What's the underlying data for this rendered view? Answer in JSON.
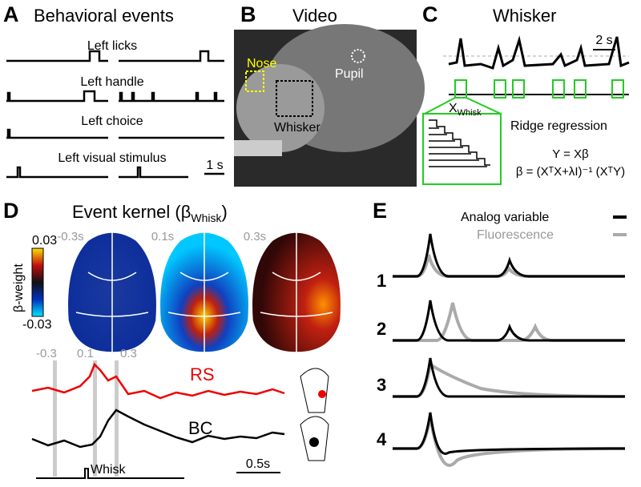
{
  "panel_a": {
    "letter": "A",
    "title": "Behavioral events",
    "rows": [
      "Left licks",
      "Left handle",
      "Left choice",
      "Left visual stimulus"
    ],
    "scale": "1 s"
  },
  "panel_b": {
    "letter": "B",
    "title": "Video",
    "nose": "Nose",
    "pupil": "Pupil",
    "whisker": "Whisker"
  },
  "panel_c": {
    "letter": "C",
    "title": "Whisker",
    "scale": "2 s",
    "matrix": "X",
    "matrix_sub": "Whisk",
    "method": "Ridge regression",
    "eq1": "Y = Xβ",
    "eq2": "β = (XᵀX+λI)⁻¹ (XᵀY)"
  },
  "panel_d": {
    "letter": "D",
    "title": "Event kernel (β",
    "title_sub": "Whisk",
    "title_end": ")",
    "map_times": [
      "-0.3s",
      "0.1s",
      "0.3s"
    ],
    "colorbar_max": "0.03",
    "colorbar_min": "-0.03",
    "colorbar_label": "β-weight",
    "trace_times": [
      "-0.3",
      "0.1",
      "0.3"
    ],
    "traces": [
      "RS",
      "BC"
    ],
    "event": "Whisk",
    "scale": "0.5s"
  },
  "panel_e": {
    "letter": "E",
    "legend": [
      "Analog variable",
      "Fluorescence"
    ],
    "rows": [
      "1",
      "2",
      "3",
      "4"
    ]
  }
}
